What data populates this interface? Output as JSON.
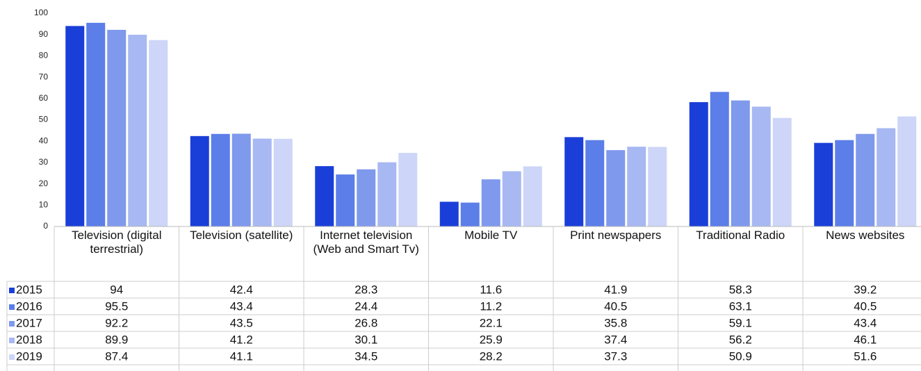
{
  "chart_data": {
    "type": "bar",
    "categories": [
      "Television (digital terrestrial)",
      "Television (satellite)",
      "Internet television (Web and Smart Tv)",
      "Mobile TV",
      "Print newspapers",
      "Traditional Radio",
      "News websites"
    ],
    "series": [
      {
        "name": "2015",
        "color": "#1a3fd8",
        "values": [
          94,
          42.4,
          28.3,
          11.6,
          41.9,
          58.3,
          39.2
        ]
      },
      {
        "name": "2016",
        "color": "#5b7ee8",
        "values": [
          95.5,
          43.4,
          24.4,
          11.2,
          40.5,
          63.1,
          40.5
        ]
      },
      {
        "name": "2017",
        "color": "#7f99ec",
        "values": [
          92.2,
          43.5,
          26.8,
          22.1,
          35.8,
          59.1,
          43.4
        ]
      },
      {
        "name": "2018",
        "color": "#a7b8f2",
        "values": [
          89.9,
          41.2,
          30.1,
          25.9,
          37.4,
          56.2,
          46.1
        ]
      },
      {
        "name": "2019",
        "color": "#cdd6f8",
        "values": [
          87.4,
          41.1,
          34.5,
          28.2,
          37.3,
          50.9,
          51.6
        ]
      }
    ],
    "ylim": [
      0,
      100
    ],
    "yticks": [
      0,
      10,
      20,
      30,
      40,
      50,
      60,
      70,
      80,
      90,
      100
    ],
    "grid": false
  }
}
